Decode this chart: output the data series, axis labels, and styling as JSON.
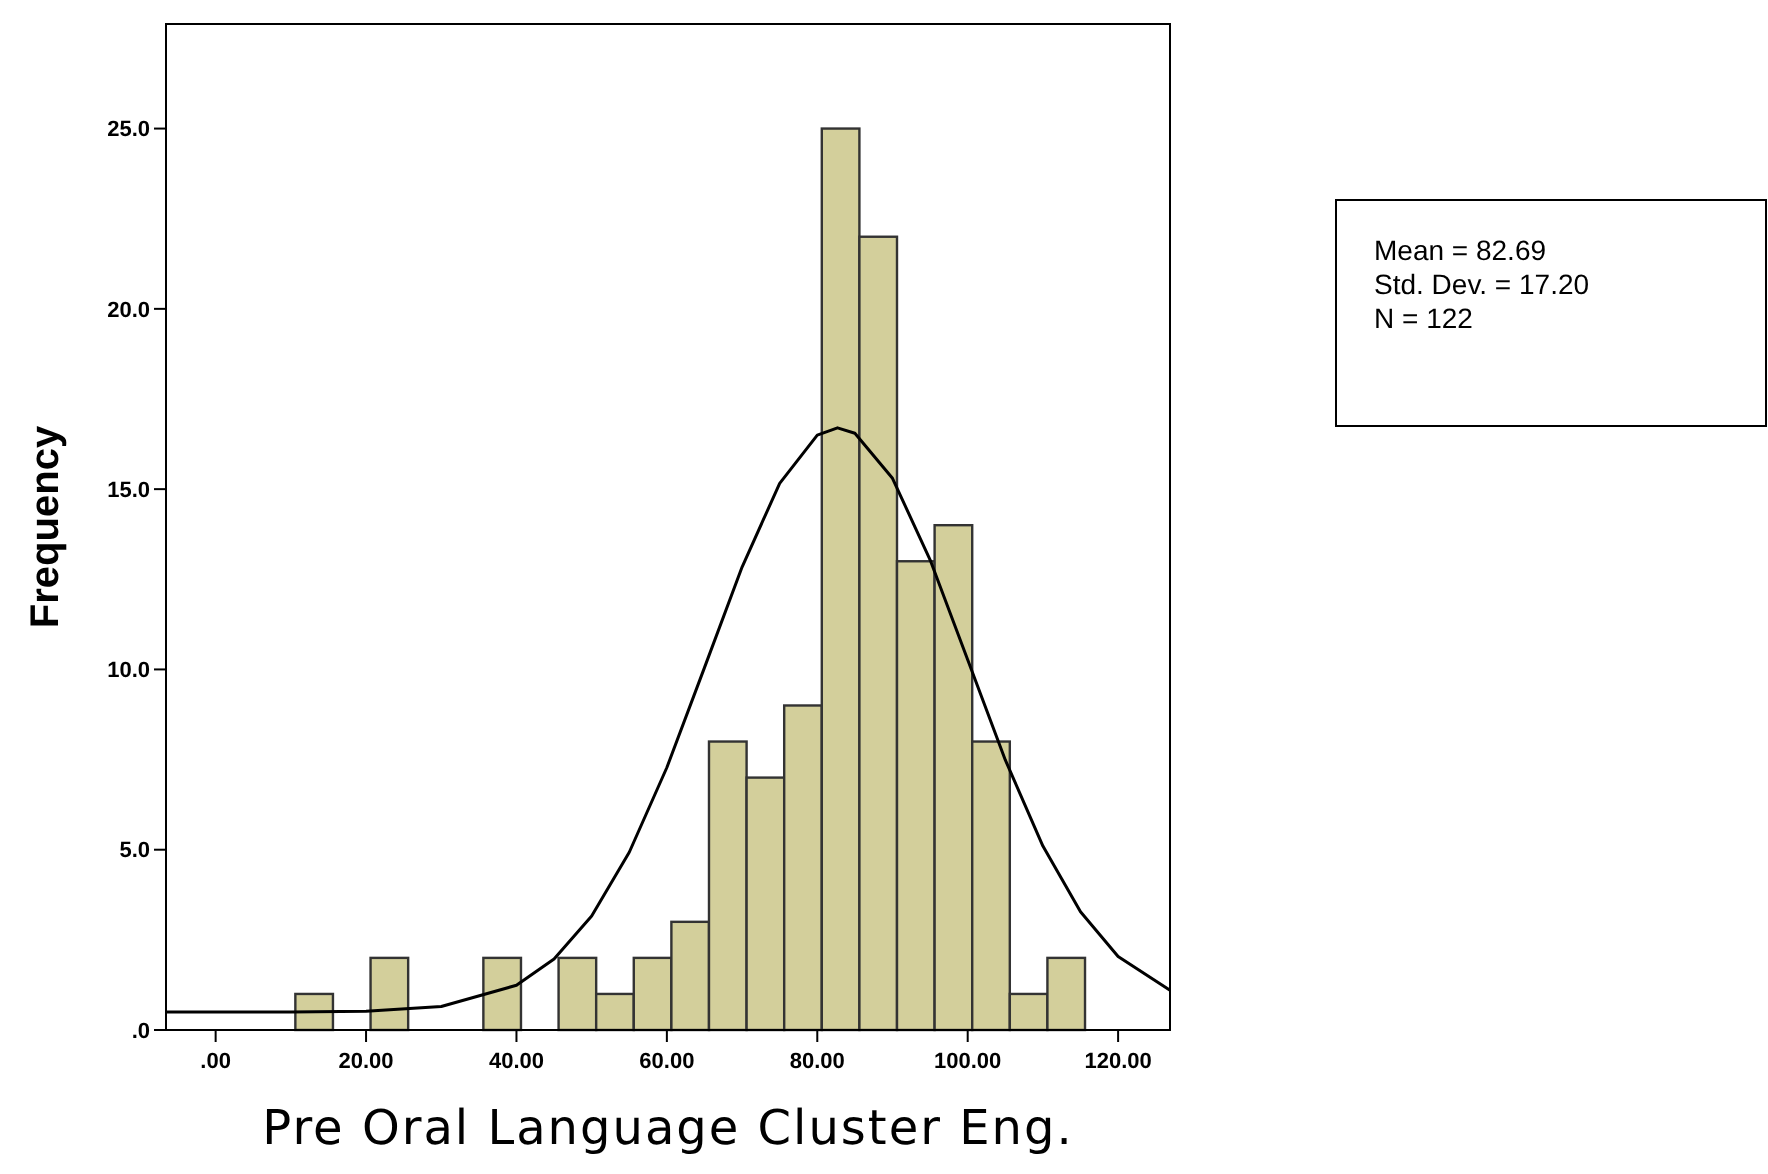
{
  "chart_data": {
    "type": "histogram",
    "xlabel": "Pre Oral Language Cluster Eng.",
    "ylabel": "Frequency",
    "bins": [
      10.6,
      15.6,
      20.6,
      25.6,
      30.6,
      35.6,
      40.6,
      45.6,
      50.6,
      55.6,
      60.6,
      65.6,
      70.6,
      75.6,
      80.6,
      85.6,
      90.6,
      95.6,
      100.6,
      105.6,
      110.6,
      115.6
    ],
    "values": [
      1,
      0,
      2,
      0,
      0,
      2,
      0,
      2,
      1,
      2,
      3,
      8,
      7,
      9,
      25,
      22,
      13,
      14,
      8,
      1,
      2
    ],
    "color": "#d3cf9b",
    "series": [
      {
        "type": "line",
        "color": "#000000",
        "x": [
          -6.6,
          10,
          20,
          30,
          40,
          45,
          50,
          55,
          60,
          65,
          70,
          75,
          80,
          82.69,
          85,
          90,
          95,
          100,
          105,
          110,
          115,
          120,
          126.9
        ],
        "values": [
          0.5,
          0.5,
          0.52,
          0.65,
          1.24,
          1.97,
          3.16,
          4.93,
          7.28,
          10.05,
          12.84,
          15.16,
          16.5,
          16.7,
          16.55,
          15.3,
          13.04,
          10.27,
          7.49,
          5.1,
          3.28,
          2.04,
          1.1
        ]
      }
    ],
    "xlim": [
      -6.6,
      126.9
    ],
    "ylim": [
      0,
      27.9
    ],
    "xticks": [
      {
        "value": 0,
        "label": ".00"
      },
      {
        "value": 20,
        "label": "20.00"
      },
      {
        "value": 40,
        "label": "40.00"
      },
      {
        "value": 60,
        "label": "60.00"
      },
      {
        "value": 80,
        "label": "80.00"
      },
      {
        "value": 100,
        "label": "100.00"
      },
      {
        "value": 120,
        "label": "120.00"
      }
    ],
    "yticks": [
      {
        "value": 0,
        "label": ".0"
      },
      {
        "value": 5,
        "label": "5.0"
      },
      {
        "value": 10,
        "label": "10.0"
      },
      {
        "value": 15,
        "label": "15.0"
      },
      {
        "value": 20,
        "label": "20.0"
      },
      {
        "value": 25,
        "label": "25.0"
      }
    ],
    "grid": false,
    "marker": "none",
    "line_style": "solid",
    "annotations": [
      "Mean = 82.69",
      "Std. Dev. = 17.20",
      "N = 122"
    ]
  }
}
